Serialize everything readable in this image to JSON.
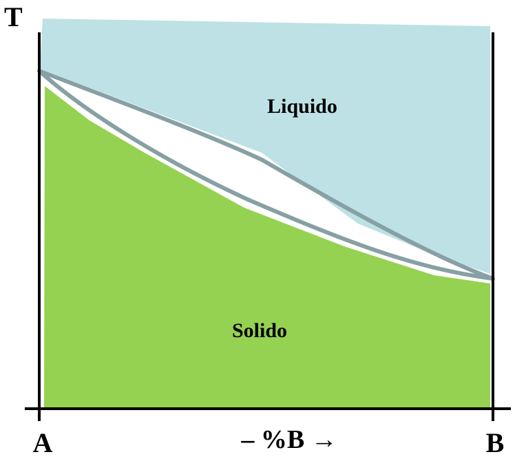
{
  "diagram": {
    "y_axis_label": "T",
    "x_left_label": "A",
    "x_right_label": "B",
    "x_axis_label": "– %B →",
    "liquid_region_label": "Liquido",
    "solid_region_label": "Solido"
  },
  "colors": {
    "liquid_fill": "#bde1e5",
    "solid_fill": "#95d251",
    "curve_stroke": "#87a0a4",
    "axis": "#000000",
    "background": "#ffffff"
  }
}
